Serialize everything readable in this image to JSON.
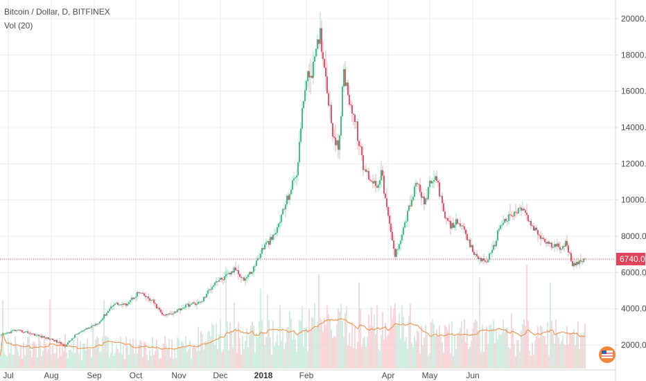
{
  "header": {
    "title": "Bitcoin / Dollar, D, BITFINEX",
    "volume_label": "Vol (20)"
  },
  "colors": {
    "up": "#2fb67a",
    "down": "#e0435a",
    "vol_up": "#bfe6d4",
    "vol_down": "#f7c4cb",
    "vol_ma": "#f0883a",
    "last_price": "#e0435a",
    "grid": "#ececec",
    "axis": "#d4d4d4"
  },
  "icons": {
    "brand": "tradingview-flag-icon"
  },
  "chart_data": {
    "type": "candlestick",
    "symbol": "Bitcoin / Dollar",
    "timeframe": "D",
    "exchange": "BITFINEX",
    "indicator": "Vol (20)",
    "ylim": [
      1000,
      20500
    ],
    "y_ticks": [
      "2000.0",
      "4000.0",
      "6000.0",
      "8000.0",
      "10000.0",
      "12000.0",
      "14000.0",
      "16000.0",
      "18000.0",
      "20000.0"
    ],
    "x_ticks": [
      "Jul",
      "Aug",
      "Sep",
      "Oct",
      "Nov",
      "Dec",
      "2018",
      "Feb",
      "Apr",
      "May",
      "Jun"
    ],
    "last_price": 6740.0,
    "last_price_label": "6740.0",
    "volume_scale_max": 6000,
    "anchors": [
      [
        0,
        2500
      ],
      [
        10,
        2800
      ],
      [
        20,
        2700
      ],
      [
        30,
        2450
      ],
      [
        38,
        2300
      ],
      [
        47,
        1950
      ],
      [
        55,
        2600
      ],
      [
        62,
        2850
      ],
      [
        72,
        3300
      ],
      [
        82,
        4300
      ],
      [
        90,
        4200
      ],
      [
        100,
        4900
      ],
      [
        110,
        4400
      ],
      [
        118,
        3600
      ],
      [
        125,
        3800
      ],
      [
        135,
        4200
      ],
      [
        145,
        4350
      ],
      [
        155,
        5500
      ],
      [
        162,
        5700
      ],
      [
        170,
        6200
      ],
      [
        176,
        5600
      ],
      [
        182,
        6100
      ],
      [
        190,
        7400
      ],
      [
        198,
        8000
      ],
      [
        206,
        9800
      ],
      [
        214,
        11500
      ],
      [
        220,
        16400
      ],
      [
        226,
        17300
      ],
      [
        231,
        19200
      ],
      [
        235,
        16800
      ],
      [
        240,
        13800
      ],
      [
        244,
        12700
      ],
      [
        248,
        17000
      ],
      [
        252,
        15600
      ],
      [
        257,
        14000
      ],
      [
        262,
        11800
      ],
      [
        267,
        11200
      ],
      [
        272,
        10800
      ],
      [
        275,
        11600
      ],
      [
        280,
        9000
      ],
      [
        285,
        6900
      ],
      [
        290,
        8200
      ],
      [
        296,
        9800
      ],
      [
        301,
        11000
      ],
      [
        306,
        9700
      ],
      [
        310,
        10800
      ],
      [
        315,
        11300
      ],
      [
        320,
        9200
      ],
      [
        325,
        8500
      ],
      [
        331,
        8900
      ],
      [
        337,
        7800
      ],
      [
        343,
        6900
      ],
      [
        350,
        6600
      ],
      [
        355,
        7100
      ],
      [
        361,
        8700
      ],
      [
        367,
        9000
      ],
      [
        372,
        9300
      ],
      [
        377,
        9600
      ],
      [
        382,
        8700
      ],
      [
        386,
        8300
      ],
      [
        392,
        7800
      ],
      [
        397,
        7500
      ],
      [
        403,
        7400
      ],
      [
        408,
        7600
      ],
      [
        413,
        6500
      ],
      [
        418,
        6600
      ],
      [
        422,
        6740
      ]
    ],
    "x_axis": {
      "start_day": 0,
      "end_day": 430,
      "tick_days": [
        6,
        37,
        68,
        98,
        129,
        159,
        190,
        221,
        280,
        310,
        341
      ]
    }
  }
}
